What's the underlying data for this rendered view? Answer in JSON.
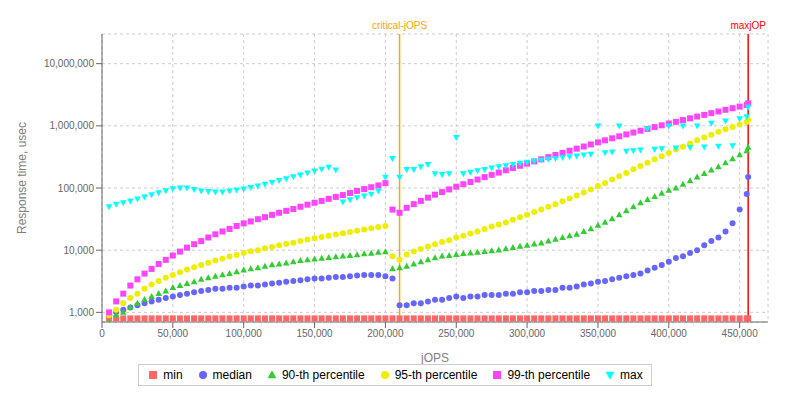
{
  "chart_data": {
    "type": "scatter",
    "xlabel": "jOPS",
    "ylabel": "Response time, usec",
    "log": "y",
    "grid": true,
    "legend": "bottom",
    "xlim": [
      0,
      470000
    ],
    "xticks": [
      0,
      {
        "value": 50000,
        "label": "50,000"
      },
      {
        "value": 100000,
        "label": "100,000"
      },
      {
        "value": 150000,
        "label": "150,000"
      },
      {
        "value": 200000,
        "label": "200,000"
      },
      {
        "value": 250000,
        "label": "250,000"
      },
      {
        "value": 300000,
        "label": "300,000"
      },
      {
        "value": 350000,
        "label": "350,000"
      },
      {
        "value": 400000,
        "label": "400,000"
      },
      {
        "value": 450000,
        "label": "450,000"
      }
    ],
    "ylim": [
      700,
      30000000
    ],
    "yticks": [
      {
        "value": 1000,
        "label": "1,000"
      },
      {
        "value": 10000,
        "label": "10,000"
      },
      {
        "value": 100000,
        "label": "100,000"
      },
      {
        "value": 1000000,
        "label": "1,000,000"
      },
      {
        "value": 10000000,
        "label": "10,000,000"
      }
    ],
    "annotations": [
      {
        "x": 210000,
        "text": "critical-jOPS",
        "color": "orange"
      },
      {
        "x": 456000,
        "text": "maxjOP",
        "color": "red"
      }
    ],
    "x": [
      5000,
      10000,
      15000,
      20000,
      25000,
      30000,
      35000,
      40000,
      45000,
      50000,
      55000,
      60000,
      65000,
      70000,
      75000,
      80000,
      85000,
      90000,
      95000,
      100000,
      105000,
      110000,
      115000,
      120000,
      125000,
      130000,
      135000,
      140000,
      145000,
      150000,
      155000,
      160000,
      165000,
      170000,
      175000,
      180000,
      185000,
      190000,
      195000,
      200000,
      205000,
      210000,
      215000,
      220000,
      225000,
      230000,
      235000,
      240000,
      245000,
      250000,
      255000,
      260000,
      265000,
      270000,
      275000,
      280000,
      285000,
      290000,
      295000,
      300000,
      305000,
      310000,
      315000,
      320000,
      325000,
      330000,
      335000,
      340000,
      345000,
      350000,
      355000,
      360000,
      365000,
      370000,
      375000,
      380000,
      385000,
      390000,
      395000,
      400000,
      405000,
      410000,
      415000,
      420000,
      425000,
      430000,
      435000,
      440000,
      445000,
      450000,
      455000,
      456000
    ],
    "series": [
      {
        "name": "min",
        "color": "#ff6666",
        "marker": "square",
        "values": [
          800,
          800,
          800,
          800,
          800,
          800,
          800,
          800,
          800,
          800,
          800,
          800,
          800,
          800,
          800,
          800,
          800,
          800,
          800,
          800,
          800,
          800,
          800,
          800,
          800,
          800,
          800,
          800,
          800,
          800,
          800,
          800,
          800,
          800,
          800,
          800,
          800,
          800,
          800,
          800,
          800,
          800,
          800,
          800,
          800,
          800,
          800,
          800,
          800,
          800,
          800,
          800,
          800,
          800,
          800,
          800,
          800,
          800,
          800,
          800,
          800,
          800,
          800,
          800,
          800,
          800,
          800,
          800,
          800,
          800,
          800,
          800,
          800,
          800,
          800,
          800,
          800,
          800,
          800,
          800,
          800,
          800,
          800,
          800,
          800,
          800,
          800,
          800,
          800,
          800,
          800,
          800
        ]
      },
      {
        "name": "median",
        "color": "#6666ff",
        "marker": "circle",
        "values": [
          900,
          1000,
          1100,
          1200,
          1300,
          1400,
          1500,
          1600,
          1700,
          1800,
          1900,
          2000,
          2100,
          2200,
          2300,
          2400,
          2400,
          2500,
          2500,
          2600,
          2700,
          2700,
          2800,
          2900,
          3000,
          3100,
          3200,
          3300,
          3400,
          3500,
          3500,
          3600,
          3700,
          3700,
          3800,
          3900,
          4000,
          4000,
          4000,
          3800,
          3500,
          1300,
          1300,
          1400,
          1400,
          1500,
          1600,
          1600,
          1700,
          1800,
          1700,
          1800,
          1800,
          1900,
          1900,
          1900,
          2000,
          2000,
          2100,
          2100,
          2200,
          2200,
          2300,
          2300,
          2500,
          2500,
          2600,
          2800,
          2900,
          3100,
          3200,
          3400,
          3600,
          3800,
          4000,
          4200,
          4700,
          5200,
          5800,
          6500,
          7500,
          8000,
          9000,
          10000,
          12000,
          14000,
          16000,
          20000,
          27000,
          45000,
          80000,
          150000
        ]
      },
      {
        "name": "90-th percentile",
        "color": "#33cc33",
        "marker": "triangle_up",
        "values": [
          700,
          900,
          1000,
          1200,
          1400,
          1600,
          1800,
          2000,
          2200,
          2500,
          2700,
          2900,
          3100,
          3400,
          3600,
          3800,
          4000,
          4200,
          4500,
          4800,
          5000,
          5200,
          5500,
          5800,
          6000,
          6200,
          6500,
          6800,
          7000,
          7200,
          7400,
          7600,
          7800,
          8000,
          8200,
          8400,
          8700,
          8900,
          9200,
          9400,
          5000,
          5200,
          5500,
          6000,
          6500,
          7000,
          7500,
          8000,
          8200,
          8500,
          8800,
          9000,
          9200,
          9500,
          9800,
          10000,
          10500,
          11000,
          11500,
          12000,
          12500,
          13000,
          14000,
          15000,
          16000,
          17000,
          18000,
          20000,
          22000,
          25000,
          28000,
          32000,
          37000,
          43000,
          50000,
          58000,
          65000,
          73000,
          82000,
          92000,
          100000,
          115000,
          130000,
          150000,
          170000,
          195000,
          220000,
          255000,
          295000,
          340000,
          395000,
          450000
        ]
      },
      {
        "name": "95-th percentile",
        "color": "#eeee00",
        "marker": "circle",
        "values": [
          900,
          1100,
          1400,
          1700,
          2000,
          2400,
          2800,
          3200,
          3600,
          4000,
          4400,
          4900,
          5300,
          5800,
          6300,
          6800,
          7300,
          7900,
          8400,
          9000,
          9600,
          10000,
          10700,
          11300,
          12000,
          12600,
          13200,
          14000,
          14800,
          15500,
          16300,
          17000,
          17900,
          18700,
          19600,
          20500,
          21500,
          22500,
          23500,
          24500,
          8000,
          7000,
          8500,
          9500,
          10500,
          11500,
          12500,
          13500,
          14500,
          16000,
          17000,
          18500,
          20000,
          22000,
          24000,
          26000,
          28000,
          31000,
          34000,
          37000,
          41000,
          45000,
          50000,
          55000,
          61000,
          68000,
          76000,
          85000,
          95000,
          108000,
          120000,
          137000,
          155000,
          175000,
          200000,
          225000,
          255000,
          290000,
          325000,
          365000,
          415000,
          460000,
          520000,
          585000,
          650000,
          720000,
          800000,
          880000,
          960000,
          1050000,
          1150000,
          1250000
        ]
      },
      {
        "name": "99-th percentile",
        "color": "#ff44ff",
        "marker": "square",
        "values": [
          1000,
          1500,
          2000,
          2700,
          3400,
          4200,
          5000,
          6000,
          7000,
          8200,
          9500,
          11000,
          12500,
          14000,
          16000,
          18000,
          20000,
          22000,
          24500,
          27000,
          29000,
          31500,
          34000,
          37000,
          40000,
          43000,
          46000,
          50000,
          54000,
          58000,
          62000,
          67000,
          72000,
          77000,
          83000,
          90000,
          96000,
          103000,
          110000,
          120000,
          45000,
          40000,
          48000,
          55000,
          62000,
          70000,
          78000,
          86000,
          95000,
          105000,
          115000,
          125000,
          137000,
          150000,
          163000,
          177000,
          193000,
          210000,
          228000,
          247000,
          268000,
          290000,
          314000,
          340000,
          368000,
          398000,
          430000,
          465000,
          502000,
          542000,
          585000,
          630000,
          678000,
          728000,
          780000,
          835000,
          893000,
          955000,
          1020000,
          1090000,
          1160000,
          1240000,
          1320000,
          1410000,
          1500000,
          1600000,
          1700000,
          1810000,
          1920000,
          2040000,
          2170000,
          2300000
        ]
      },
      {
        "name": "max",
        "color": "#00ffff",
        "marker": "triangle_down",
        "values": [
          50000,
          55000,
          58000,
          62000,
          67000,
          72000,
          78000,
          84000,
          91000,
          98000,
          100000,
          100000,
          95000,
          90000,
          88000,
          87000,
          87000,
          90000,
          93000,
          97000,
          102000,
          108000,
          115000,
          123000,
          132000,
          142000,
          152000,
          163000,
          175000,
          188000,
          202000,
          217000,
          195000,
          60000,
          65000,
          70000,
          75000,
          80000,
          90000,
          150000,
          300000,
          150000,
          200000,
          200000,
          220000,
          240000,
          170000,
          165000,
          170000,
          650000,
          170000,
          180000,
          190000,
          200000,
          210000,
          220000,
          230000,
          240000,
          250000,
          260000,
          270000,
          280000,
          290000,
          300000,
          310000,
          320000,
          330000,
          340000,
          350000,
          1000000,
          370000,
          380000,
          1000000,
          390000,
          400000,
          410000,
          900000,
          420000,
          430000,
          1000000,
          440000,
          1000000,
          450000,
          1000000,
          460000,
          1100000,
          470000,
          1200000,
          480000,
          1300000,
          1400000,
          2000000
        ]
      }
    ]
  }
}
